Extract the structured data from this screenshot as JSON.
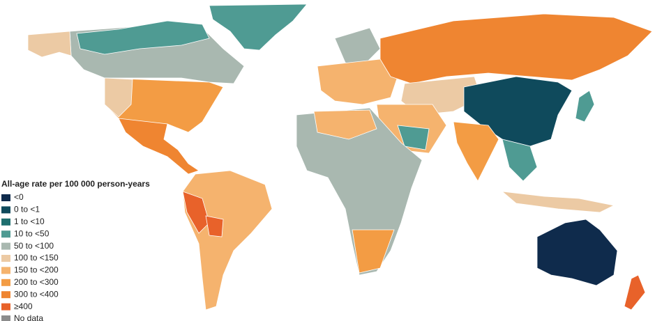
{
  "legend": {
    "title": "All-age rate per 100 000 person-years",
    "items": [
      {
        "label": "<0",
        "color": "#0f2b4c"
      },
      {
        "label": "0 to <1",
        "color": "#0f4a5c"
      },
      {
        "label": "1 to <10",
        "color": "#1e6e6e"
      },
      {
        "label": "10 to <50",
        "color": "#4f9b93"
      },
      {
        "label": "50 to <100",
        "color": "#a9b8b0"
      },
      {
        "label": "100 to <150",
        "color": "#eccaa4"
      },
      {
        "label": "150 to <200",
        "color": "#f5b36e"
      },
      {
        "label": "200 to <300",
        "color": "#f39c44"
      },
      {
        "label": "300 to <400",
        "color": "#ef8531"
      },
      {
        "label": "≥400",
        "color": "#e8622a"
      },
      {
        "label": "No data",
        "color": "#8c8c8c"
      }
    ]
  }
}
